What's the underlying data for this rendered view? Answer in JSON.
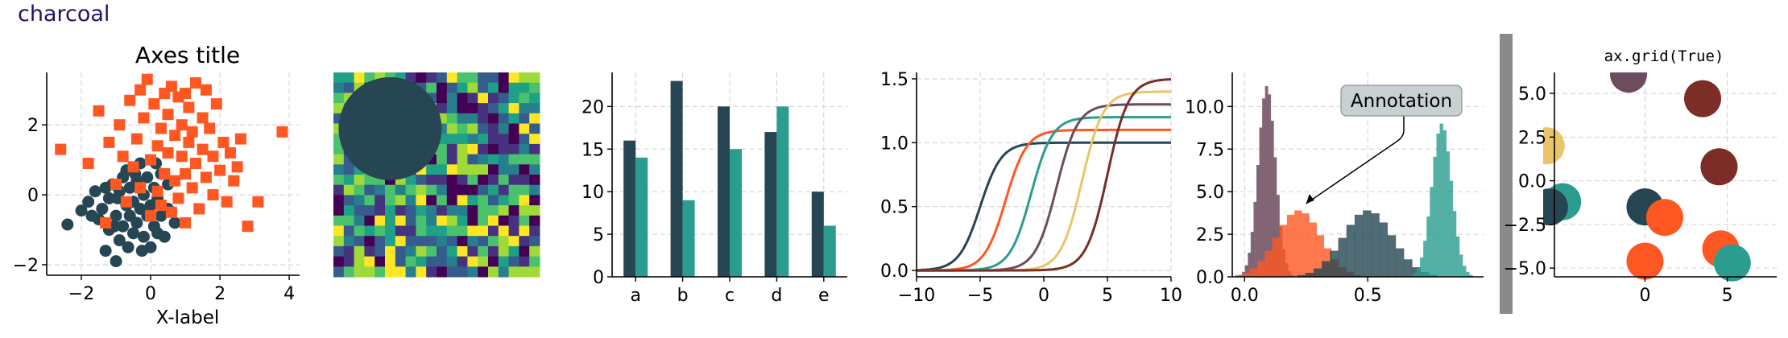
{
  "figure": {
    "style_label": "charcoal",
    "colors": {
      "charcoal": "#264653",
      "orange": "#ff5722",
      "teal": "#2a9d8f",
      "sand": "#e9c46a",
      "mauve": "#6d4c5e",
      "maroon": "#7b2d26",
      "grid": "#d0d0d0",
      "scrollbar": "#8a8a8a"
    }
  },
  "chart_data": [
    {
      "type": "scatter",
      "title": "Axes title",
      "xlabel": "X-label",
      "ylabel": "",
      "xlim": [
        -3.0,
        4.3
      ],
      "ylim": [
        -2.3,
        3.5
      ],
      "xticks": [
        -2,
        0,
        2,
        4
      ],
      "yticks": [
        -2,
        0,
        2
      ],
      "grid": true,
      "series": [
        {
          "color": "#264653",
          "marker": "circle",
          "points": [
            [
              -2.4,
              -0.85
            ],
            [
              -2.0,
              -0.45
            ],
            [
              -1.8,
              -0.2
            ],
            [
              -1.7,
              -0.6
            ],
            [
              -1.6,
              0.1
            ],
            [
              -1.5,
              -0.7
            ],
            [
              -1.4,
              -0.4
            ],
            [
              -1.3,
              0.2
            ],
            [
              -1.2,
              -1.0
            ],
            [
              -1.2,
              -0.1
            ],
            [
              -1.1,
              0.3
            ],
            [
              -1.0,
              -0.6
            ],
            [
              -1.0,
              -1.9
            ],
            [
              -0.9,
              -1.3
            ],
            [
              -0.9,
              0.1
            ],
            [
              -0.8,
              0.5
            ],
            [
              -0.8,
              -0.9
            ],
            [
              -0.7,
              -0.3
            ],
            [
              -0.7,
              0.7
            ],
            [
              -0.6,
              -0.6
            ],
            [
              -0.6,
              0.2
            ],
            [
              -0.5,
              -1.1
            ],
            [
              -0.5,
              -0.2
            ],
            [
              -0.4,
              0.4
            ],
            [
              -0.4,
              -0.8
            ],
            [
              -0.3,
              -0.4
            ],
            [
              -0.3,
              0.9
            ],
            [
              -0.2,
              -1.2
            ],
            [
              -0.2,
              0.0
            ],
            [
              -0.1,
              -0.6
            ],
            [
              -0.1,
              0.5
            ],
            [
              0.0,
              -0.3
            ],
            [
              0.0,
              -1.5
            ],
            [
              0.1,
              0.2
            ],
            [
              0.1,
              -0.9
            ],
            [
              0.2,
              -0.1
            ],
            [
              0.3,
              -0.6
            ],
            [
              0.3,
              0.6
            ],
            [
              0.4,
              -1.2
            ],
            [
              0.5,
              -0.4
            ],
            [
              -1.3,
              -1.6
            ],
            [
              -0.95,
              -0.1
            ],
            [
              -0.65,
              -1.5
            ],
            [
              -0.45,
              0.6
            ],
            [
              0.2,
              -1.1
            ],
            [
              0.5,
              0.3
            ],
            [
              0.7,
              -0.8
            ],
            [
              -1.05,
              -0.9
            ],
            [
              -0.25,
              -1.6
            ],
            [
              0.15,
              0.9
            ]
          ]
        },
        {
          "color": "#ff5722",
          "marker": "square",
          "points": [
            [
              -2.6,
              1.3
            ],
            [
              -1.8,
              0.9
            ],
            [
              -1.5,
              2.4
            ],
            [
              -1.3,
              -0.8
            ],
            [
              -1.2,
              1.5
            ],
            [
              -1.0,
              0.3
            ],
            [
              -0.9,
              2.0
            ],
            [
              -0.8,
              1.1
            ],
            [
              -0.7,
              -0.2
            ],
            [
              -0.6,
              2.7
            ],
            [
              -0.5,
              0.8
            ],
            [
              -0.4,
              1.6
            ],
            [
              -0.3,
              0.2
            ],
            [
              -0.2,
              2.2
            ],
            [
              -0.1,
              3.3
            ],
            [
              0.0,
              1.0
            ],
            [
              0.0,
              -0.6
            ],
            [
              0.1,
              2.6
            ],
            [
              0.2,
              1.4
            ],
            [
              0.2,
              0.1
            ],
            [
              0.3,
              1.9
            ],
            [
              0.3,
              -0.3
            ],
            [
              0.4,
              0.6
            ],
            [
              0.5,
              2.3
            ],
            [
              0.5,
              1.2
            ],
            [
              0.6,
              -0.5
            ],
            [
              0.6,
              3.1
            ],
            [
              0.7,
              0.4
            ],
            [
              0.7,
              1.7
            ],
            [
              0.8,
              2.8
            ],
            [
              0.8,
              -0.1
            ],
            [
              0.9,
              1.1
            ],
            [
              0.9,
              2.0
            ],
            [
              1.0,
              0.6
            ],
            [
              1.0,
              -0.8
            ],
            [
              1.1,
              1.5
            ],
            [
              1.1,
              2.5
            ],
            [
              1.2,
              0.2
            ],
            [
              1.2,
              1.8
            ],
            [
              1.3,
              0.9
            ],
            [
              1.3,
              3.2
            ],
            [
              1.4,
              -0.4
            ],
            [
              1.5,
              1.3
            ],
            [
              1.5,
              2.2
            ],
            [
              1.6,
              0.5
            ],
            [
              1.7,
              1.9
            ],
            [
              1.8,
              0.0
            ],
            [
              1.8,
              1.1
            ],
            [
              1.9,
              2.6
            ],
            [
              2.0,
              0.7
            ],
            [
              2.1,
              1.5
            ],
            [
              2.2,
              -0.2
            ],
            [
              2.3,
              1.2
            ],
            [
              2.4,
              0.4
            ],
            [
              2.5,
              0.8
            ],
            [
              2.6,
              1.6
            ],
            [
              2.8,
              -0.9
            ],
            [
              3.1,
              -0.2
            ],
            [
              3.8,
              1.8
            ],
            [
              1.6,
              3.0
            ],
            [
              0.4,
              2.9
            ],
            [
              -0.3,
              3.0
            ],
            [
              1.0,
              2.9
            ]
          ]
        }
      ]
    },
    {
      "type": "heatmap",
      "rows": 20,
      "cols": 20,
      "colormap": [
        "#440154",
        "#46327e",
        "#365c8d",
        "#277f8e",
        "#1fa187",
        "#4ac16d",
        "#a0da39",
        "#fde725"
      ],
      "overlay_circle": {
        "cx": 5.5,
        "cy": 5.5,
        "r": 5,
        "color": "#264653"
      }
    },
    {
      "type": "bar",
      "categories": [
        "a",
        "b",
        "c",
        "d",
        "e"
      ],
      "ylim": [
        0,
        24
      ],
      "yticks": [
        0,
        5,
        10,
        15,
        20
      ],
      "grid": true,
      "series": [
        {
          "values": [
            16,
            23,
            20,
            17,
            10
          ],
          "color": "#264653"
        },
        {
          "values": [
            14,
            9,
            15,
            20,
            6
          ],
          "color": "#2a9d8f"
        }
      ]
    },
    {
      "type": "line",
      "xlim": [
        -10,
        10
      ],
      "ylim": [
        -0.05,
        1.55
      ],
      "xticks": [
        -10,
        -5,
        0,
        5,
        10
      ],
      "yticks": [
        0.0,
        0.5,
        1.0,
        1.5
      ],
      "grid": true,
      "series": [
        {
          "color": "#264653",
          "midpoint": -5,
          "amplitude": 1.0
        },
        {
          "color": "#ff5722",
          "midpoint": -3,
          "amplitude": 1.1
        },
        {
          "color": "#2a9d8f",
          "midpoint": -1,
          "amplitude": 1.2
        },
        {
          "color": "#6d4c5e",
          "midpoint": 1,
          "amplitude": 1.3
        },
        {
          "color": "#e9c46a",
          "midpoint": 3,
          "amplitude": 1.4
        },
        {
          "color": "#7b2d26",
          "midpoint": 5,
          "amplitude": 1.5
        }
      ]
    },
    {
      "type": "area",
      "subtype": "histogram",
      "xlim": [
        -0.05,
        0.97
      ],
      "ylim": [
        0,
        12
      ],
      "xticks": [
        0.0,
        0.5
      ],
      "yticks": [
        0.0,
        2.5,
        5.0,
        7.5,
        10.0
      ],
      "grid": true,
      "annotation": {
        "text": "Annotation",
        "arrow_to": [
          0.25,
          4.3
        ]
      },
      "series": [
        {
          "color": "#6d4c5e",
          "center": 0.09,
          "width": 0.035,
          "peak": 11.2,
          "alpha": 0.85
        },
        {
          "color": "#ff5722",
          "center": 0.22,
          "width": 0.09,
          "peak": 3.9,
          "alpha": 0.8
        },
        {
          "color": "#264653",
          "center": 0.5,
          "width": 0.1,
          "peak": 3.9,
          "alpha": 0.8
        },
        {
          "color": "#2a9d8f",
          "center": 0.8,
          "width": 0.04,
          "peak": 9.0,
          "alpha": 0.8
        }
      ]
    },
    {
      "type": "scatter",
      "title": "ax.grid(True)",
      "xlim": [
        -5.5,
        8.0
      ],
      "ylim": [
        -5.5,
        6.2
      ],
      "xticks": [
        0,
        5
      ],
      "yticks": [
        -5.0,
        -2.5,
        0.0,
        2.5,
        5.0
      ],
      "grid": true,
      "series": [
        {
          "marker": "circle",
          "points": [
            {
              "x": -1.0,
              "y": 6.1,
              "color": "#6d4c5e"
            },
            {
              "x": 3.5,
              "y": 4.7,
              "color": "#7b2d26"
            },
            {
              "x": -6.0,
              "y": 2.0,
              "color": "#e9c46a"
            },
            {
              "x": 4.5,
              "y": 0.8,
              "color": "#7b2d26"
            },
            {
              "x": -5.0,
              "y": -1.2,
              "color": "#2a9d8f"
            },
            {
              "x": -5.8,
              "y": -1.5,
              "color": "#264653"
            },
            {
              "x": 0.0,
              "y": -1.5,
              "color": "#264653"
            },
            {
              "x": 1.2,
              "y": -2.1,
              "color": "#ff5722"
            },
            {
              "x": 0.0,
              "y": -4.6,
              "color": "#ff5722"
            },
            {
              "x": 4.6,
              "y": -3.9,
              "color": "#ff5722"
            },
            {
              "x": 5.3,
              "y": -4.7,
              "color": "#2a9d8f"
            }
          ]
        }
      ]
    }
  ]
}
